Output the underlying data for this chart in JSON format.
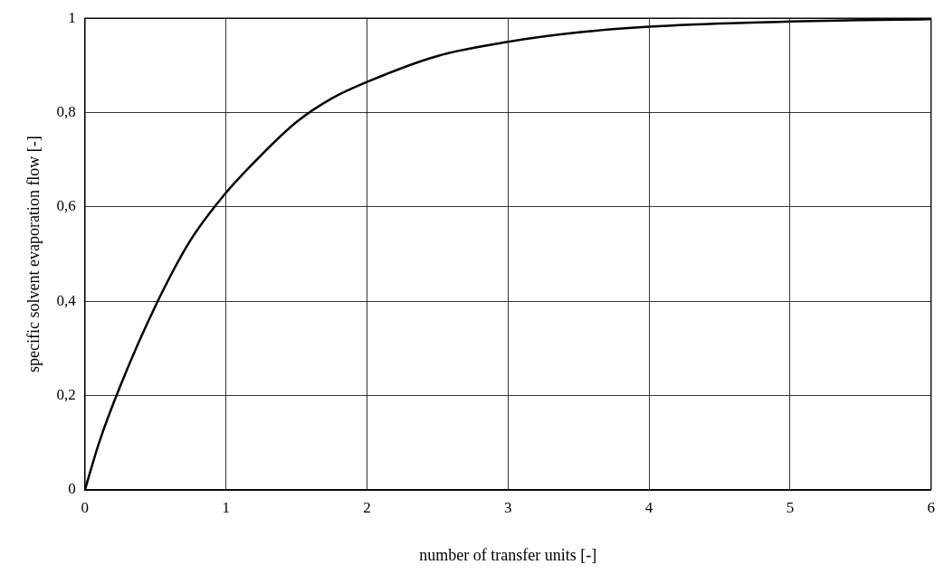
{
  "chart_data": {
    "type": "line",
    "xlabel": "number of transfer units [-]",
    "ylabel": "specific solvent evaporation flow [-]",
    "x": [
      0,
      0.1,
      0.25,
      0.5,
      0.75,
      1,
      1.25,
      1.5,
      1.75,
      2,
      2.5,
      3,
      3.5,
      4,
      4.5,
      5,
      5.5,
      6
    ],
    "series": [
      {
        "color": "#000000",
        "values": [
          0,
          0.1,
          0.22,
          0.39,
          0.53,
          0.63,
          0.71,
          0.78,
          0.83,
          0.865,
          0.92,
          0.95,
          0.97,
          0.982,
          0.989,
          0.993,
          0.996,
          0.998
        ]
      }
    ],
    "xlim": [
      0,
      6
    ],
    "xticks": [
      0,
      1,
      2,
      3,
      4,
      5,
      6
    ],
    "ylim": [
      0,
      1
    ],
    "yticks": [
      0,
      {
        "value": 0.2,
        "label": "0,2"
      },
      {
        "value": 0.4,
        "label": "0,4"
      },
      {
        "value": 0.6,
        "label": "0,6"
      },
      {
        "value": 0.8,
        "label": "0,8"
      },
      1
    ],
    "grid": true,
    "legend": false,
    "marker": "none",
    "line_style": "solid"
  }
}
